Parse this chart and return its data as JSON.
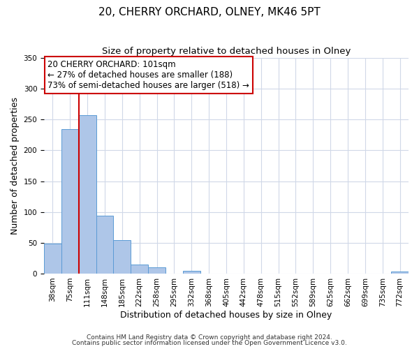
{
  "title": "20, CHERRY ORCHARD, OLNEY, MK46 5PT",
  "subtitle": "Size of property relative to detached houses in Olney",
  "xlabel": "Distribution of detached houses by size in Olney",
  "ylabel": "Number of detached properties",
  "bin_labels": [
    "38sqm",
    "75sqm",
    "111sqm",
    "148sqm",
    "185sqm",
    "222sqm",
    "258sqm",
    "295sqm",
    "332sqm",
    "368sqm",
    "405sqm",
    "442sqm",
    "478sqm",
    "515sqm",
    "552sqm",
    "589sqm",
    "625sqm",
    "662sqm",
    "699sqm",
    "735sqm",
    "772sqm"
  ],
  "bar_heights": [
    49,
    235,
    257,
    94,
    54,
    15,
    10,
    0,
    4,
    0,
    0,
    0,
    0,
    0,
    0,
    0,
    0,
    0,
    0,
    0,
    3
  ],
  "bar_color": "#aec6e8",
  "bar_edge_color": "#5b9bd5",
  "vline_x": 2.0,
  "vline_color": "#cc0000",
  "annotation_title": "20 CHERRY ORCHARD: 101sqm",
  "annotation_line1": "← 27% of detached houses are smaller (188)",
  "annotation_line2": "73% of semi-detached houses are larger (518) →",
  "annotation_box_color": "#ffffff",
  "annotation_box_edge": "#cc0000",
  "ylim": [
    0,
    350
  ],
  "yticks": [
    0,
    50,
    100,
    150,
    200,
    250,
    300,
    350
  ],
  "footnote1": "Contains HM Land Registry data © Crown copyright and database right 2024.",
  "footnote2": "Contains public sector information licensed under the Open Government Licence v3.0.",
  "background_color": "#ffffff",
  "grid_color": "#d0d8e8",
  "title_fontsize": 11,
  "subtitle_fontsize": 9.5,
  "axis_label_fontsize": 9,
  "tick_fontsize": 7.5,
  "annotation_fontsize": 8.5,
  "footnote_fontsize": 6.5
}
